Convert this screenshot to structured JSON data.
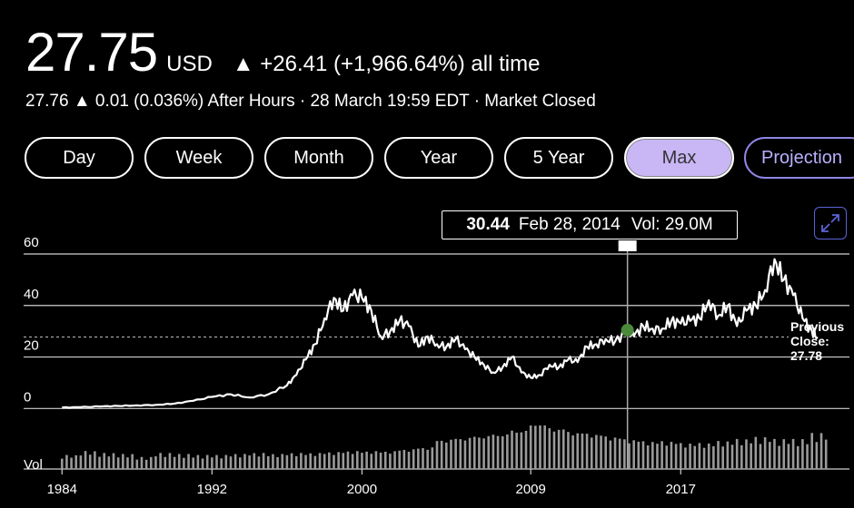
{
  "header": {
    "price": "27.75",
    "currency": "USD",
    "change": "▲ +26.41 (+1,966.64%) all time",
    "after_hours": "27.76 ▲ 0.01 (0.036%)  After Hours · 28 March 19:59 EDT · Market Closed"
  },
  "tabs": [
    "Day",
    "Week",
    "Month",
    "Year",
    "5 Year",
    "Max",
    "Projection"
  ],
  "active_tab": "Max",
  "tooltip": {
    "price": "30.44",
    "date": "Feb 28, 2014",
    "vol": "Vol: 29.0M"
  },
  "expand_icon": "expand-icon",
  "previous_close": {
    "label_line1": "Previous",
    "label_line2": "Close:",
    "value": "27.78"
  },
  "colors": {
    "background": "#000000",
    "line": "#ffffff",
    "active_tab": "#c8b6f5",
    "projection": "#8f86e6",
    "marker": "#4a8a3a",
    "volume": "#9a9a9a"
  },
  "chart_data": {
    "type": "line",
    "y_ticks": [
      "60",
      "40",
      "20",
      "0"
    ],
    "ylim": [
      -2,
      60
    ],
    "x_ticks": [
      "1984",
      "1992",
      "2000",
      "2009",
      "2017"
    ],
    "xlim": [
      1983.6,
      2026.0
    ],
    "volume_label": "Vol",
    "previous_close": 27.78,
    "hover": {
      "x": 2014.16,
      "y": 30.44
    },
    "series": [
      {
        "x": [
          1984.0,
          1985.0,
          1986.0,
          1987.0,
          1988.0,
          1989.0,
          1990.0,
          1991.0,
          1992.0,
          1993.0,
          1994.0,
          1995.0,
          1996.0,
          1996.5,
          1997.0,
          1997.5,
          1998.0,
          1998.5,
          1999.0,
          1999.5,
          2000.0,
          2000.5,
          2001.0,
          2001.5,
          2002.0,
          2002.5,
          2003.0,
          2003.5,
          2004.0,
          2004.5,
          2005.0,
          2005.5,
          2006.0,
          2006.5,
          2007.0,
          2007.5,
          2008.0,
          2008.5,
          2009.0,
          2009.5,
          2010.0,
          2010.5,
          2011.0,
          2011.5,
          2012.0,
          2012.5,
          2013.0,
          2013.5,
          2014.16,
          2014.5,
          2015.0,
          2015.5,
          2016.0,
          2016.5,
          2017.0,
          2017.5,
          2018.0,
          2018.5,
          2019.0,
          2019.5,
          2020.0,
          2020.5,
          2021.0,
          2021.5,
          2022.0,
          2022.5,
          2023.0,
          2023.5,
          2024.0,
          2024.3
        ],
        "y": [
          0.4,
          0.5,
          0.8,
          1.0,
          1.2,
          1.4,
          1.9,
          3.0,
          4.5,
          5.5,
          4.3,
          5.5,
          9.0,
          13.0,
          19.0,
          25.0,
          35.0,
          43.0,
          38.0,
          44.0,
          43.0,
          38.0,
          28.0,
          30.0,
          34.0,
          32.0,
          24.0,
          28.0,
          25.0,
          24.0,
          27.0,
          23.0,
          20.0,
          17.0,
          14.0,
          16.0,
          20.0,
          14.0,
          12.0,
          13.0,
          17.0,
          16.0,
          19.0,
          18.0,
          24.0,
          25.0,
          27.0,
          26.0,
          30.44,
          28.0,
          32.0,
          31.0,
          31.0,
          34.0,
          33.0,
          34.0,
          35.0,
          42.0,
          36.0,
          40.0,
          32.0,
          38.0,
          40.0,
          46.0,
          58.0,
          50.0,
          44.0,
          35.0,
          30.0,
          27.75
        ]
      }
    ],
    "volume": {
      "x": [
        1984.0,
        1985.0,
        1986.0,
        1987.0,
        1988.0,
        1989.0,
        1990.0,
        1991.0,
        1992.0,
        1993.0,
        1994.0,
        1995.0,
        1996.0,
        1997.0,
        1998.0,
        1999.0,
        2000.0,
        2001.0,
        2002.0,
        2003.0,
        2004.0,
        2005.0,
        2006.0,
        2007.0,
        2008.0,
        2009.0,
        2010.0,
        2011.0,
        2012.0,
        2013.0,
        2014.0,
        2015.0,
        2016.0,
        2017.0,
        2018.0,
        2019.0,
        2020.0,
        2021.0,
        2022.0,
        2023.0,
        2024.0
      ],
      "y": [
        14,
        18,
        16,
        15,
        12,
        16,
        15,
        14,
        14,
        15,
        16,
        15,
        16,
        16,
        17,
        18,
        18,
        18,
        20,
        22,
        30,
        32,
        34,
        36,
        40,
        48,
        42,
        38,
        36,
        33,
        30,
        28,
        28,
        26,
        26,
        28,
        30,
        32,
        30,
        30,
        36
      ]
    }
  }
}
